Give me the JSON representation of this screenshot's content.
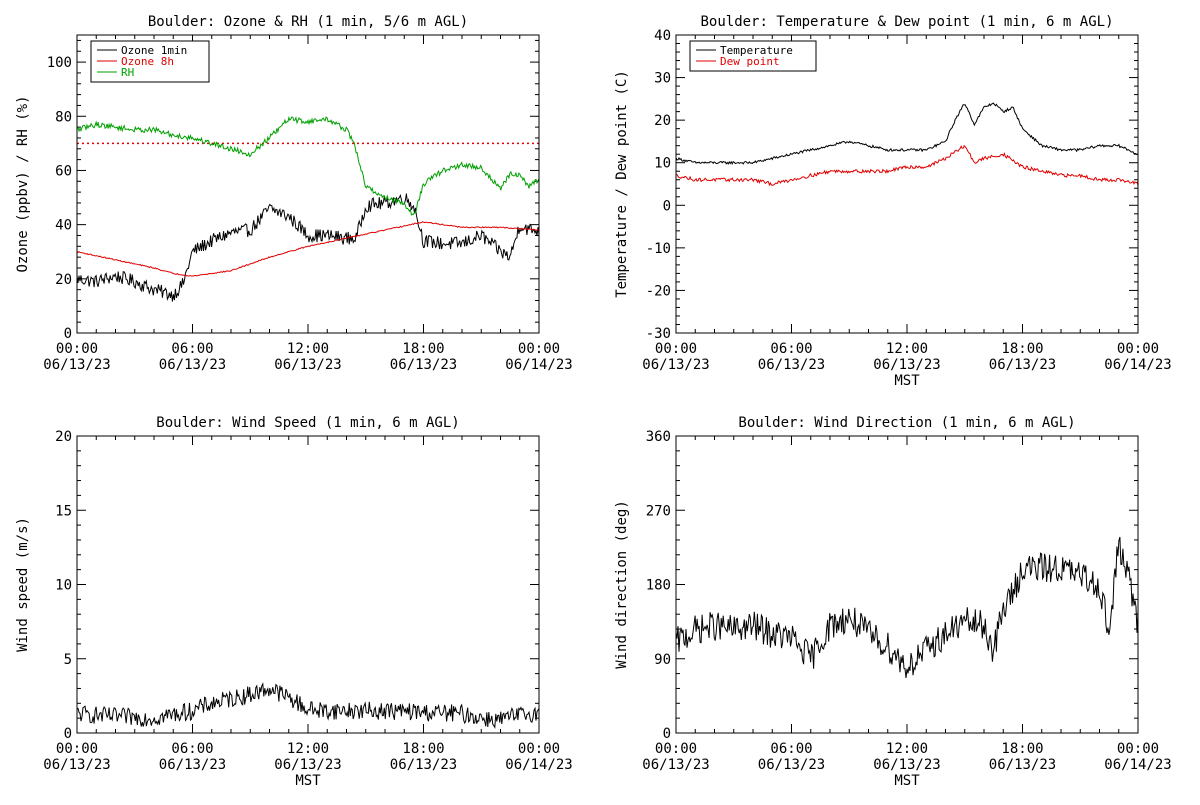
{
  "chart_data": [
    {
      "type": "line",
      "title": "Boulder: Ozone & RH (1 min, 5/6 m AGL)",
      "ylabel": "Ozone (ppbv) / RH (%)",
      "xlabel": "",
      "ylim": [
        0,
        110
      ],
      "yticks": [
        0,
        20,
        40,
        60,
        80,
        100
      ],
      "xlim": [
        "06/13/23 00:00",
        "06/14/23 00:00"
      ],
      "xticks": [
        {
          "time": "00:00",
          "date": "06/13/23"
        },
        {
          "time": "06:00",
          "date": "06/13/23"
        },
        {
          "time": "12:00",
          "date": "06/13/23"
        },
        {
          "time": "18:00",
          "date": "06/13/23"
        },
        {
          "time": "00:00",
          "date": "06/14/23"
        }
      ],
      "legend_position": "top-left",
      "reference_line": {
        "y": 70,
        "color": "#e00000",
        "style": "dotted"
      },
      "series": [
        {
          "name": "Ozone 1min",
          "color": "#000000",
          "x": [
            0,
            1,
            2,
            3,
            4,
            4.5,
            5,
            5.5,
            6,
            7,
            8,
            9,
            9.5,
            10,
            11,
            12,
            13,
            14,
            14.5,
            15,
            16,
            17,
            17.5,
            18,
            19,
            20,
            21,
            22,
            22.5,
            23,
            23.5,
            24
          ],
          "y": [
            20,
            19,
            21,
            19,
            16,
            15,
            14,
            18,
            30,
            34,
            37,
            38,
            42,
            46,
            43,
            36,
            36,
            35,
            35,
            47,
            48,
            50,
            47,
            34,
            33,
            33,
            36,
            30,
            28,
            40,
            38,
            38
          ],
          "noise": 2.5
        },
        {
          "name": "Ozone 8h",
          "color": "#e00000",
          "x": [
            0,
            2,
            4,
            5,
            6,
            8,
            10,
            12,
            14,
            16,
            18,
            20,
            22,
            24
          ],
          "y": [
            30,
            27,
            24,
            22,
            21,
            23,
            28,
            32,
            35,
            38,
            41,
            39,
            39,
            38
          ],
          "noise": 0.2
        },
        {
          "name": "RH",
          "color": "#00a000",
          "x": [
            0,
            1,
            2,
            3,
            4,
            5,
            6,
            7,
            8,
            9,
            10,
            11,
            12,
            13,
            14,
            14.4,
            15,
            16,
            17,
            17.5,
            18,
            19,
            20,
            21,
            21.5,
            22,
            22.5,
            23,
            23.5,
            24
          ],
          "y": [
            75,
            77,
            76,
            75,
            75,
            73,
            72,
            70,
            68,
            66,
            72,
            79,
            78,
            79,
            75,
            70,
            54,
            50,
            48,
            43,
            55,
            60,
            62,
            61,
            57,
            53,
            59,
            58,
            54,
            57
          ],
          "noise": 1.0
        }
      ]
    },
    {
      "type": "line",
      "title": "Boulder: Temperature & Dew point (1 min, 6 m AGL)",
      "ylabel": "Temperature / Dew point (C)",
      "xlabel": "MST",
      "ylim": [
        -30,
        40
      ],
      "yticks": [
        -30,
        -20,
        -10,
        0,
        10,
        20,
        30,
        40
      ],
      "xlim": [
        "06/13/23 00:00",
        "06/14/23 00:00"
      ],
      "xticks": [
        {
          "time": "00:00",
          "date": "06/13/23"
        },
        {
          "time": "06:00",
          "date": "06/13/23"
        },
        {
          "time": "12:00",
          "date": "06/13/23"
        },
        {
          "time": "18:00",
          "date": "06/13/23"
        },
        {
          "time": "00:00",
          "date": "06/14/23"
        }
      ],
      "legend_position": "top-left",
      "series": [
        {
          "name": "Temperature",
          "color": "#000000",
          "x": [
            0,
            1,
            2,
            3,
            4,
            5,
            6,
            7,
            8,
            9,
            10,
            11,
            12,
            13,
            14,
            14.5,
            15,
            15.5,
            16,
            16.5,
            17,
            17.5,
            18,
            19,
            20,
            21,
            22,
            23,
            24
          ],
          "y": [
            11,
            10,
            10,
            10,
            10,
            11,
            12,
            13,
            14,
            15,
            14,
            13,
            13,
            13,
            15,
            20,
            24,
            19,
            23,
            24,
            22,
            23,
            18,
            14,
            13,
            13,
            14,
            14,
            12
          ],
          "noise": 0.3
        },
        {
          "name": "Dew point",
          "color": "#e00000",
          "x": [
            0,
            1,
            2,
            3,
            4,
            5,
            6,
            7,
            8,
            9,
            10,
            11,
            12,
            13,
            14,
            15,
            15.5,
            16,
            17,
            18,
            19,
            20,
            21,
            22,
            23,
            24
          ],
          "y": [
            7,
            6,
            6,
            6,
            6,
            5,
            6,
            7,
            8,
            8,
            8,
            8,
            9,
            9,
            11,
            14,
            10,
            11,
            12,
            9,
            8,
            7,
            7,
            6,
            6,
            5
          ],
          "noise": 0.4
        }
      ]
    },
    {
      "type": "line",
      "title": "Boulder: Wind Speed (1 min, 6 m AGL)",
      "ylabel": "Wind speed (m/s)",
      "xlabel": "MST",
      "ylim": [
        0,
        20
      ],
      "yticks": [
        0,
        5,
        10,
        15,
        20
      ],
      "xlim": [
        "06/13/23 00:00",
        "06/14/23 00:00"
      ],
      "xticks": [
        {
          "time": "00:00",
          "date": "06/13/23"
        },
        {
          "time": "06:00",
          "date": "06/13/23"
        },
        {
          "time": "12:00",
          "date": "06/13/23"
        },
        {
          "time": "18:00",
          "date": "06/13/23"
        },
        {
          "time": "00:00",
          "date": "06/14/23"
        }
      ],
      "series": [
        {
          "name": "",
          "color": "#000000",
          "x": [
            0,
            2,
            4,
            6,
            7,
            8,
            9,
            10,
            11,
            12,
            13,
            14,
            16,
            18,
            20,
            21,
            22,
            23,
            24
          ],
          "y": [
            1.3,
            1.1,
            1.0,
            1.5,
            2.0,
            2.3,
            2.6,
            3.0,
            2.4,
            1.6,
            1.5,
            1.5,
            1.5,
            1.4,
            1.3,
            1.0,
            0.9,
            1.2,
            1.4
          ],
          "noise": 0.6
        }
      ]
    },
    {
      "type": "line",
      "title": "Boulder: Wind Direction (1 min, 6 m AGL)",
      "ylabel": "Wind direction (deg)",
      "xlabel": "MST",
      "ylim": [
        0,
        360
      ],
      "yticks": [
        0,
        90,
        180,
        270,
        360
      ],
      "xlim": [
        "06/13/23 00:00",
        "06/14/23 00:00"
      ],
      "xticks": [
        {
          "time": "00:00",
          "date": "06/13/23"
        },
        {
          "time": "06:00",
          "date": "06/13/23"
        },
        {
          "time": "12:00",
          "date": "06/13/23"
        },
        {
          "time": "18:00",
          "date": "06/13/23"
        },
        {
          "time": "00:00",
          "date": "06/14/23"
        }
      ],
      "series": [
        {
          "name": "",
          "color": "#000000",
          "x": [
            0,
            1,
            2,
            3,
            4,
            5,
            6,
            7,
            8,
            9,
            10,
            11,
            12,
            13,
            14,
            15,
            16,
            16.5,
            17,
            17.5,
            18,
            19,
            20,
            21,
            22,
            22.5,
            23,
            23.5,
            24
          ],
          "y": [
            110,
            125,
            130,
            125,
            130,
            120,
            115,
            90,
            130,
            140,
            120,
            105,
            80,
            100,
            120,
            135,
            130,
            100,
            150,
            170,
            200,
            200,
            200,
            190,
            180,
            120,
            230,
            190,
            130
          ],
          "noise": 18
        }
      ]
    }
  ]
}
